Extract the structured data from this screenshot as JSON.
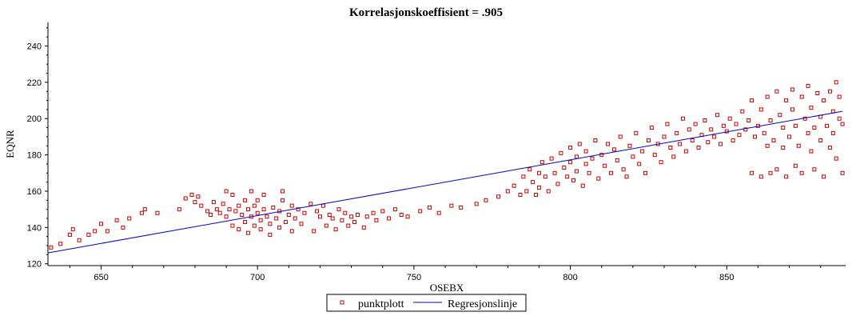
{
  "chart_data": {
    "type": "scatter",
    "title": "Korrelasjonskoeffisient =  .905",
    "xlabel": "OSEBX",
    "ylabel": "EQNR",
    "xlim": [
      633,
      888
    ],
    "ylim": [
      119,
      253
    ],
    "xticks": [
      650,
      700,
      750,
      800,
      850
    ],
    "yticks": [
      120,
      140,
      160,
      180,
      200,
      220,
      240
    ],
    "grid": false,
    "legend": "bottom-center",
    "series": [
      {
        "name": "punktplott",
        "kind": "scatter",
        "color": "#cc0000",
        "marker": "open-square",
        "points": [
          [
            634,
            129
          ],
          [
            637,
            131
          ],
          [
            640,
            136
          ],
          [
            641,
            139
          ],
          [
            643,
            133
          ],
          [
            646,
            136
          ],
          [
            648,
            138
          ],
          [
            650,
            142
          ],
          [
            652,
            138
          ],
          [
            655,
            144
          ],
          [
            657,
            140
          ],
          [
            659,
            145
          ],
          [
            663,
            148
          ],
          [
            664,
            150
          ],
          [
            668,
            148
          ],
          [
            675,
            150
          ],
          [
            677,
            156
          ],
          [
            679,
            158
          ],
          [
            680,
            154
          ],
          [
            681,
            157
          ],
          [
            682,
            152
          ],
          [
            684,
            149
          ],
          [
            685,
            147
          ],
          [
            686,
            154
          ],
          [
            687,
            150
          ],
          [
            688,
            148
          ],
          [
            689,
            153
          ],
          [
            690,
            160
          ],
          [
            690,
            146
          ],
          [
            691,
            150
          ],
          [
            692,
            158
          ],
          [
            692,
            141
          ],
          [
            693,
            149
          ],
          [
            694,
            152
          ],
          [
            694,
            139
          ],
          [
            695,
            147
          ],
          [
            696,
            155
          ],
          [
            696,
            143
          ],
          [
            697,
            150
          ],
          [
            697,
            137
          ],
          [
            698,
            160
          ],
          [
            698,
            146
          ],
          [
            699,
            152
          ],
          [
            699,
            141
          ],
          [
            700,
            148
          ],
          [
            700,
            155
          ],
          [
            701,
            144
          ],
          [
            701,
            139
          ],
          [
            702,
            150
          ],
          [
            702,
            158
          ],
          [
            703,
            146
          ],
          [
            704,
            142
          ],
          [
            704,
            136
          ],
          [
            705,
            151
          ],
          [
            706,
            145
          ],
          [
            707,
            140
          ],
          [
            707,
            149
          ],
          [
            708,
            155
          ],
          [
            708,
            160
          ],
          [
            709,
            143
          ],
          [
            710,
            147
          ],
          [
            711,
            138
          ],
          [
            711,
            152
          ],
          [
            712,
            145
          ],
          [
            713,
            150
          ],
          [
            714,
            142
          ],
          [
            715,
            148
          ],
          [
            717,
            153
          ],
          [
            718,
            138
          ],
          [
            719,
            149
          ],
          [
            720,
            146
          ],
          [
            721,
            152
          ],
          [
            722,
            141
          ],
          [
            723,
            147
          ],
          [
            724,
            145
          ],
          [
            725,
            139
          ],
          [
            726,
            150
          ],
          [
            727,
            144
          ],
          [
            728,
            148
          ],
          [
            729,
            141
          ],
          [
            730,
            146
          ],
          [
            731,
            143
          ],
          [
            732,
            147
          ],
          [
            734,
            140
          ],
          [
            735,
            146
          ],
          [
            737,
            148
          ],
          [
            738,
            144
          ],
          [
            740,
            149
          ],
          [
            742,
            145
          ],
          [
            744,
            150
          ],
          [
            746,
            147
          ],
          [
            748,
            146
          ],
          [
            752,
            149
          ],
          [
            755,
            151
          ],
          [
            758,
            148
          ],
          [
            762,
            152
          ],
          [
            765,
            151
          ],
          [
            770,
            153
          ],
          [
            773,
            155
          ],
          [
            777,
            157
          ],
          [
            780,
            160
          ],
          [
            782,
            163
          ],
          [
            784,
            158
          ],
          [
            785,
            168
          ],
          [
            786,
            160
          ],
          [
            787,
            172
          ],
          [
            788,
            165
          ],
          [
            789,
            158
          ],
          [
            790,
            170
          ],
          [
            790,
            162
          ],
          [
            791,
            176
          ],
          [
            792,
            168
          ],
          [
            793,
            160
          ],
          [
            794,
            178
          ],
          [
            795,
            170
          ],
          [
            796,
            164
          ],
          [
            797,
            181
          ],
          [
            798,
            173
          ],
          [
            799,
            168
          ],
          [
            800,
            176
          ],
          [
            800,
            184
          ],
          [
            801,
            166
          ],
          [
            802,
            179
          ],
          [
            802,
            171
          ],
          [
            803,
            186
          ],
          [
            804,
            163
          ],
          [
            805,
            175
          ],
          [
            805,
            182
          ],
          [
            806,
            170
          ],
          [
            807,
            178
          ],
          [
            808,
            188
          ],
          [
            809,
            167
          ],
          [
            810,
            180
          ],
          [
            811,
            174
          ],
          [
            812,
            186
          ],
          [
            813,
            170
          ],
          [
            814,
            183
          ],
          [
            815,
            177
          ],
          [
            816,
            190
          ],
          [
            817,
            172
          ],
          [
            818,
            168
          ],
          [
            819,
            185
          ],
          [
            820,
            179
          ],
          [
            821,
            192
          ],
          [
            822,
            175
          ],
          [
            823,
            182
          ],
          [
            824,
            170
          ],
          [
            825,
            188
          ],
          [
            826,
            195
          ],
          [
            827,
            180
          ],
          [
            828,
            186
          ],
          [
            829,
            176
          ],
          [
            830,
            190
          ],
          [
            831,
            197
          ],
          [
            832,
            184
          ],
          [
            833,
            179
          ],
          [
            834,
            192
          ],
          [
            835,
            186
          ],
          [
            836,
            200
          ],
          [
            837,
            182
          ],
          [
            838,
            194
          ],
          [
            839,
            188
          ],
          [
            840,
            197
          ],
          [
            841,
            184
          ],
          [
            842,
            191
          ],
          [
            843,
            199
          ],
          [
            844,
            187
          ],
          [
            845,
            194
          ],
          [
            846,
            190
          ],
          [
            847,
            202
          ],
          [
            848,
            186
          ],
          [
            849,
            196
          ],
          [
            850,
            193
          ],
          [
            851,
            200
          ],
          [
            852,
            188
          ],
          [
            853,
            197
          ],
          [
            854,
            191
          ],
          [
            855,
            204
          ],
          [
            856,
            194
          ],
          [
            857,
            199
          ],
          [
            858,
            170
          ],
          [
            858,
            210
          ],
          [
            859,
            190
          ],
          [
            860,
            196
          ],
          [
            861,
            168
          ],
          [
            861,
            205
          ],
          [
            862,
            192
          ],
          [
            863,
            185
          ],
          [
            863,
            212
          ],
          [
            864,
            170
          ],
          [
            864,
            199
          ],
          [
            865,
            188
          ],
          [
            866,
            215
          ],
          [
            866,
            172
          ],
          [
            867,
            202
          ],
          [
            868,
            184
          ],
          [
            868,
            195
          ],
          [
            869,
            210
          ],
          [
            869,
            168
          ],
          [
            870,
            190
          ],
          [
            871,
            205
          ],
          [
            871,
            216
          ],
          [
            872,
            174
          ],
          [
            872,
            196
          ],
          [
            873,
            185
          ],
          [
            874,
            212
          ],
          [
            874,
            170
          ],
          [
            875,
            200
          ],
          [
            876,
            192
          ],
          [
            876,
            218
          ],
          [
            877,
            182
          ],
          [
            877,
            206
          ],
          [
            878,
            172
          ],
          [
            878,
            195
          ],
          [
            879,
            214
          ],
          [
            880,
            188
          ],
          [
            880,
            201
          ],
          [
            881,
            210
          ],
          [
            881,
            168
          ],
          [
            882,
            196
          ],
          [
            883,
            215
          ],
          [
            883,
            184
          ],
          [
            884,
            204
          ],
          [
            884,
            192
          ],
          [
            885,
            220
          ],
          [
            885,
            178
          ],
          [
            886,
            200
          ],
          [
            886,
            212
          ],
          [
            887,
            170
          ],
          [
            887,
            197
          ]
        ]
      },
      {
        "name": "Regresjonslinje",
        "kind": "line",
        "color": "#0000cc",
        "points": [
          [
            633,
            126
          ],
          [
            887,
            204
          ]
        ]
      }
    ]
  }
}
